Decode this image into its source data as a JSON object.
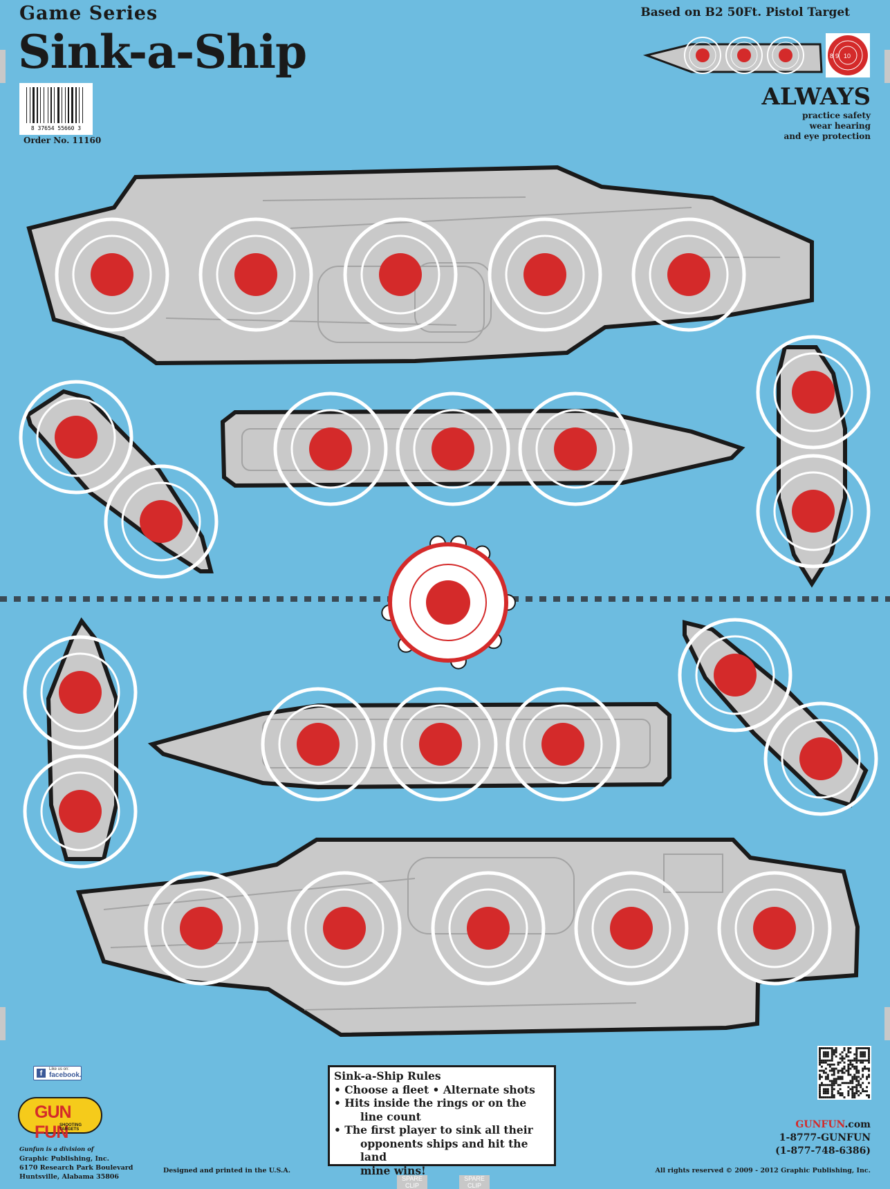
{
  "header": {
    "series": "Game Series",
    "title": "Sink-a-Ship",
    "barcode_number": "8  37654  55660  3",
    "order": "Order No. 11160",
    "based_on": "Based on B2 50Ft. Pistol Target",
    "always": "ALWAYS",
    "safety": [
      "practice safety",
      "wear hearing",
      "and eye protection"
    ],
    "legend_rings": [
      "8",
      "9",
      "10"
    ]
  },
  "rules": {
    "title": "Sink-a-Ship Rules",
    "lines": [
      "• Choose a fleet • Alternate shots",
      "• Hits inside the rings or on the",
      "line count",
      "• The first player to sink all their",
      "opponents ships and hit the land",
      "mine wins!"
    ]
  },
  "facebook": {
    "small": "Like us on:",
    "name": "facebook."
  },
  "logo": {
    "name": "GUN FUN",
    "sub": "SHOOTING TARGETS"
  },
  "company": {
    "division": "Gunfun is a division of",
    "lines": [
      "Graphic Publishing, Inc.",
      "6170 Research Park Boulevard",
      "Huntsville, Alabama 35806"
    ]
  },
  "designed": "Designed and printed in the U.S.A.",
  "contact": {
    "site_red": "GUNFUN",
    "site_rest": ".com",
    "phone1": "1-8777-GUNFUN",
    "phone2": "(1-877-748-6386)"
  },
  "rights": "All rights reserved © 2009 - 2012 Graphic Publishing, Inc.",
  "spare_clips": [
    "SPARE CLIP",
    "SPARE CLIP"
  ],
  "colors": {
    "water": "#6dbce0",
    "hull": "#c9c9c9",
    "bull": "#d42a2a",
    "ring": "#ffffff",
    "outline": "#1a1a1a"
  }
}
